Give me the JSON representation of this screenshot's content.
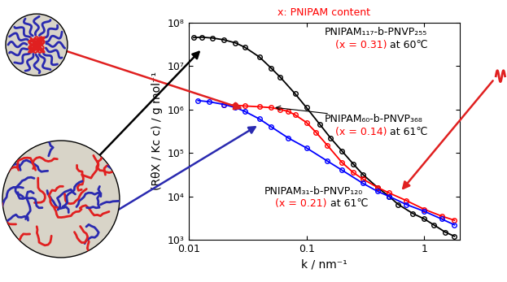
{
  "chart_data": {
    "type": "line",
    "title": "x: PNIPAM content",
    "x_label": "k / nm⁻¹",
    "y_label": "(RθX / Kc c) / g mol⁻¹",
    "log": true,
    "grid": false,
    "xlim": [
      0.01,
      2
    ],
    "ylim": [
      1000,
      100000000
    ],
    "xticks": [
      0.01,
      0.1,
      1
    ],
    "yticks": [
      {
        "value": 1000,
        "label": "10³"
      },
      {
        "value": 10000,
        "label": "10⁴"
      },
      {
        "value": 100000,
        "label": "10⁵"
      },
      {
        "value": 1000000,
        "label": "10⁶"
      },
      {
        "value": 10000000,
        "label": "10⁷"
      },
      {
        "value": 100000000,
        "label": "10⁸"
      }
    ],
    "series": [
      {
        "name": "PNIPAM₁₁₇-b-PNVP₂₅₅",
        "content_label": "(x = 0.31)",
        "temperature_label": "at 60℃",
        "color": "#000000",
        "marker": "o",
        "line_style": "solid",
        "x": [
          0.011,
          0.013,
          0.016,
          0.02,
          0.025,
          0.03,
          0.04,
          0.05,
          0.06,
          0.08,
          0.1,
          0.13,
          0.16,
          0.2,
          0.25,
          0.3,
          0.4,
          0.5,
          0.6,
          0.8,
          1.0,
          1.2,
          1.5,
          1.8
        ],
        "values": [
          45000000.0,
          46000000.0,
          44000000.0,
          40000000.0,
          34000000.0,
          27000000.0,
          16000000.0,
          9000000.0,
          5500000.0,
          2300000.0,
          1100000.0,
          450000.0,
          220000.0,
          110000.0,
          55000.0,
          32000.0,
          16000.0,
          10000.0,
          6500.0,
          4000.0,
          3000.0,
          2200.0,
          1500.0,
          1200.0
        ]
      },
      {
        "name": "PNIPAM₆₀-b-PNVP₃₆₈",
        "content_label": "(x = 0.14)",
        "temperature_label": "at 61℃",
        "color": "#ff0000",
        "marker": "o",
        "line_style": "solid",
        "x": [
          0.02,
          0.025,
          0.03,
          0.04,
          0.05,
          0.06,
          0.07,
          0.08,
          0.1,
          0.12,
          0.15,
          0.2,
          0.25,
          0.3,
          0.4,
          0.5,
          0.7,
          1.0,
          1.4,
          1.8
        ],
        "values": [
          1300000.0,
          1250000.0,
          1200000.0,
          1150000.0,
          1100000.0,
          1000000.0,
          900000.0,
          750000.0,
          500000.0,
          300000.0,
          150000.0,
          60000.0,
          35000.0,
          25000.0,
          16000.0,
          12000.0,
          8000.0,
          5000.0,
          3500.0,
          2800.0
        ]
      },
      {
        "name": "PNIPAM₃₁-b-PNVP₁₂₀",
        "content_label": "(x = 0.21)",
        "temperature_label": "at 61℃",
        "color": "#0000ff",
        "marker": "o",
        "line_style": "solid",
        "x": [
          0.012,
          0.015,
          0.02,
          0.025,
          0.03,
          0.04,
          0.05,
          0.07,
          0.1,
          0.15,
          0.2,
          0.3,
          0.4,
          0.5,
          0.7,
          1.0,
          1.4,
          1.8
        ],
        "values": [
          1600000.0,
          1500000.0,
          1300000.0,
          1100000.0,
          900000.0,
          600000.0,
          400000.0,
          220000.0,
          130000.0,
          65000.0,
          40000.0,
          20000.0,
          13000.0,
          10000.0,
          6500.0,
          4500.0,
          3000.0,
          2200.0
        ]
      }
    ]
  }
}
